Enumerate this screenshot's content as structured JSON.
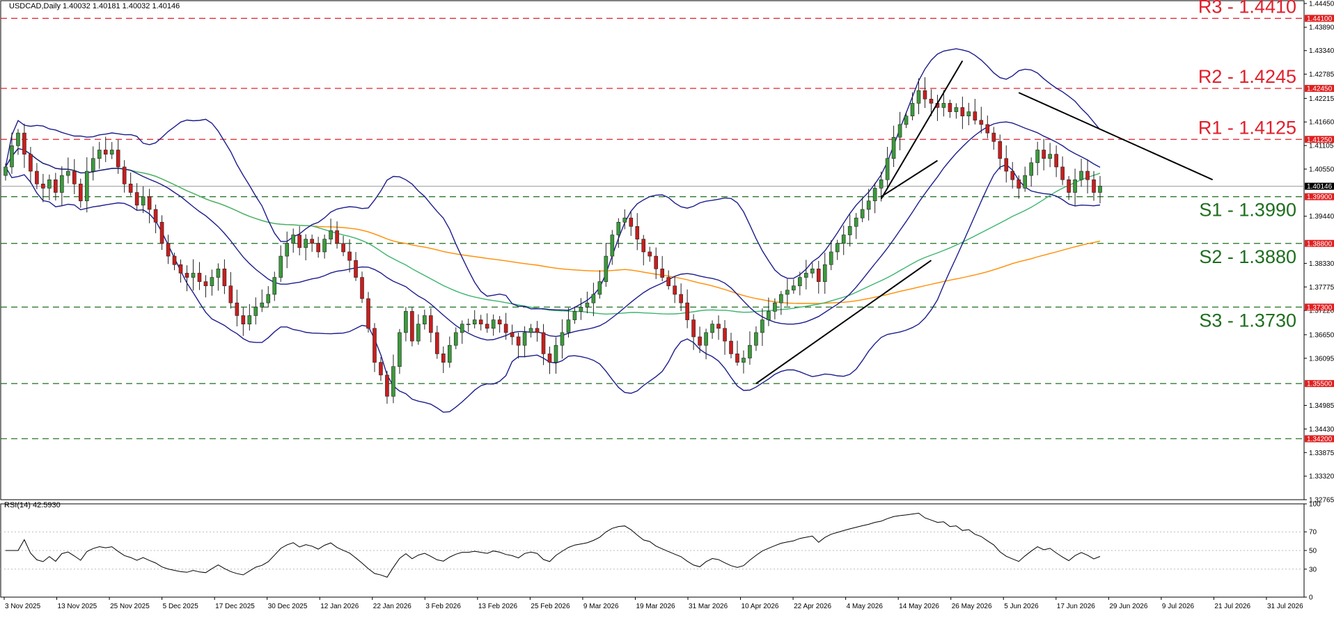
{
  "header": {
    "symbol_line": "USDCAD,Daily  1.40032 1.40181 1.40032 1.40146",
    "rsi_label": "RSI(14) 42.5930"
  },
  "colors": {
    "bull": "#3c9a3c",
    "bear": "#c81e1e",
    "resistance": "#e0202c",
    "support": "#1e6e1e",
    "bollinger": "#1c1c8c",
    "ma_fast": "#3cb46e",
    "ma_slow": "#ff8c00",
    "trendline": "#000000",
    "price_line": "#9a9a9a"
  },
  "chart_data": [
    {
      "type": "candlestick",
      "title": "USDCAD,Daily",
      "ylim": [
        1.32765,
        1.4445
      ],
      "y_ticks": [
        "1.44450",
        "1.43890",
        "1.43340",
        "1.42785",
        "1.42215",
        "1.41660",
        "1.41105",
        "1.40550",
        "1.39440",
        "1.38330",
        "1.37775",
        "1.37220",
        "1.36650",
        "1.36095",
        "1.34985",
        "1.34430",
        "1.33875",
        "1.33320",
        "1.32765"
      ],
      "x_ticks": [
        "3 Nov 2025",
        "13 Nov 2025",
        "25 Nov 2025",
        "5 Dec 2025",
        "17 Dec 2025",
        "30 Dec 2025",
        "12 Jan 2026",
        "22 Jan 2026",
        "3 Feb 2026",
        "13 Feb 2026",
        "25 Feb 2026",
        "9 Mar 2026",
        "19 Mar 2026",
        "31 Mar 2026",
        "10 Apr 2026",
        "22 Apr 2026",
        "4 May 2026",
        "14 May 2026",
        "26 May 2026",
        "5 Jun 2026",
        "17 Jun 2026",
        "29 Jun 2026",
        "9 Jul 2026",
        "21 Jul 2026",
        "31 Jul 2026"
      ],
      "last_price": {
        "value": 1.40146,
        "label": "1.40146"
      },
      "levels": [
        {
          "name": "R3",
          "text": "R3 - 1.4410",
          "value": 1.441,
          "tag": "1.44100",
          "kind": "resistance"
        },
        {
          "name": "R2",
          "text": "R2 - 1.4245",
          "value": 1.4245,
          "tag": "1.42450",
          "kind": "resistance"
        },
        {
          "name": "R1",
          "text": "R1 - 1.4125",
          "value": 1.4125,
          "tag": "1.41250",
          "kind": "resistance"
        },
        {
          "name": "S1",
          "text": "S1 - 1.3990",
          "value": 1.399,
          "tag": "1.39900",
          "kind": "support"
        },
        {
          "name": "S2",
          "text": "S2 - 1.3880",
          "value": 1.388,
          "tag": "1.38800",
          "kind": "support"
        },
        {
          "name": "S3",
          "text": "S3 - 1.3730",
          "value": 1.373,
          "tag": "1.37300",
          "kind": "support"
        },
        {
          "name": "",
          "text": "",
          "value": 1.355,
          "tag": "1.35500",
          "kind": "support"
        },
        {
          "name": "",
          "text": "",
          "value": 1.342,
          "tag": "1.34200",
          "kind": "support"
        }
      ],
      "series": [
        {
          "kind": "candles",
          "x_start": "3 Nov 2025",
          "x_end": "5 Aug 2026",
          "close": [
            1.406,
            1.411,
            1.414,
            1.409,
            1.405,
            1.402,
            1.401,
            1.403,
            1.4,
            1.404,
            1.405,
            1.402,
            1.398,
            1.405,
            1.408,
            1.41,
            1.409,
            1.41,
            1.406,
            1.402,
            1.4,
            1.397,
            1.399,
            1.396,
            1.393,
            1.388,
            1.385,
            1.383,
            1.381,
            1.38,
            1.381,
            1.379,
            1.378,
            1.38,
            1.382,
            1.378,
            1.374,
            1.371,
            1.369,
            1.371,
            1.373,
            1.374,
            1.376,
            1.38,
            1.385,
            1.388,
            1.39,
            1.387,
            1.389,
            1.388,
            1.386,
            1.389,
            1.391,
            1.388,
            1.386,
            1.384,
            1.38,
            1.375,
            1.368,
            1.36,
            1.357,
            1.352,
            1.359,
            1.367,
            1.372,
            1.365,
            1.369,
            1.371,
            1.367,
            1.362,
            1.36,
            1.364,
            1.367,
            1.369,
            1.369,
            1.37,
            1.369,
            1.368,
            1.37,
            1.369,
            1.367,
            1.366,
            1.364,
            1.367,
            1.368,
            1.367,
            1.362,
            1.36,
            1.364,
            1.367,
            1.37,
            1.372,
            1.373,
            1.374,
            1.376,
            1.379,
            1.385,
            1.39,
            1.393,
            1.394,
            1.392,
            1.389,
            1.386,
            1.385,
            1.382,
            1.38,
            1.378,
            1.376,
            1.374,
            1.37,
            1.366,
            1.364,
            1.367,
            1.369,
            1.368,
            1.365,
            1.362,
            1.36,
            1.361,
            1.364,
            1.367,
            1.37,
            1.372,
            1.374,
            1.376,
            1.377,
            1.378,
            1.38,
            1.381,
            1.382,
            1.379,
            1.383,
            1.386,
            1.388,
            1.39,
            1.392,
            1.394,
            1.396,
            1.398,
            1.401,
            1.403,
            1.408,
            1.413,
            1.416,
            1.418,
            1.421,
            1.424,
            1.422,
            1.421,
            1.42,
            1.421,
            1.419,
            1.42,
            1.418,
            1.419,
            1.417,
            1.416,
            1.414,
            1.412,
            1.408,
            1.405,
            1.403,
            1.401,
            1.404,
            1.407,
            1.41,
            1.408,
            1.409,
            1.406,
            1.403,
            1.4,
            1.403,
            1.405,
            1.403,
            1.4,
            1.4015
          ],
          "name": ""
        },
        {
          "kind": "bollinger",
          "name": ""
        },
        {
          "kind": "ma_fast",
          "name": ""
        },
        {
          "kind": "ma_slow",
          "name": ""
        }
      ]
    },
    {
      "type": "line",
      "title": "RSI(14) 42.5930",
      "ylim": [
        0,
        100
      ],
      "y_ticks": [
        100,
        70,
        50,
        30,
        0
      ],
      "levels": [
        70,
        50,
        30
      ],
      "series": [
        {
          "name": "",
          "values": []
        }
      ]
    }
  ]
}
